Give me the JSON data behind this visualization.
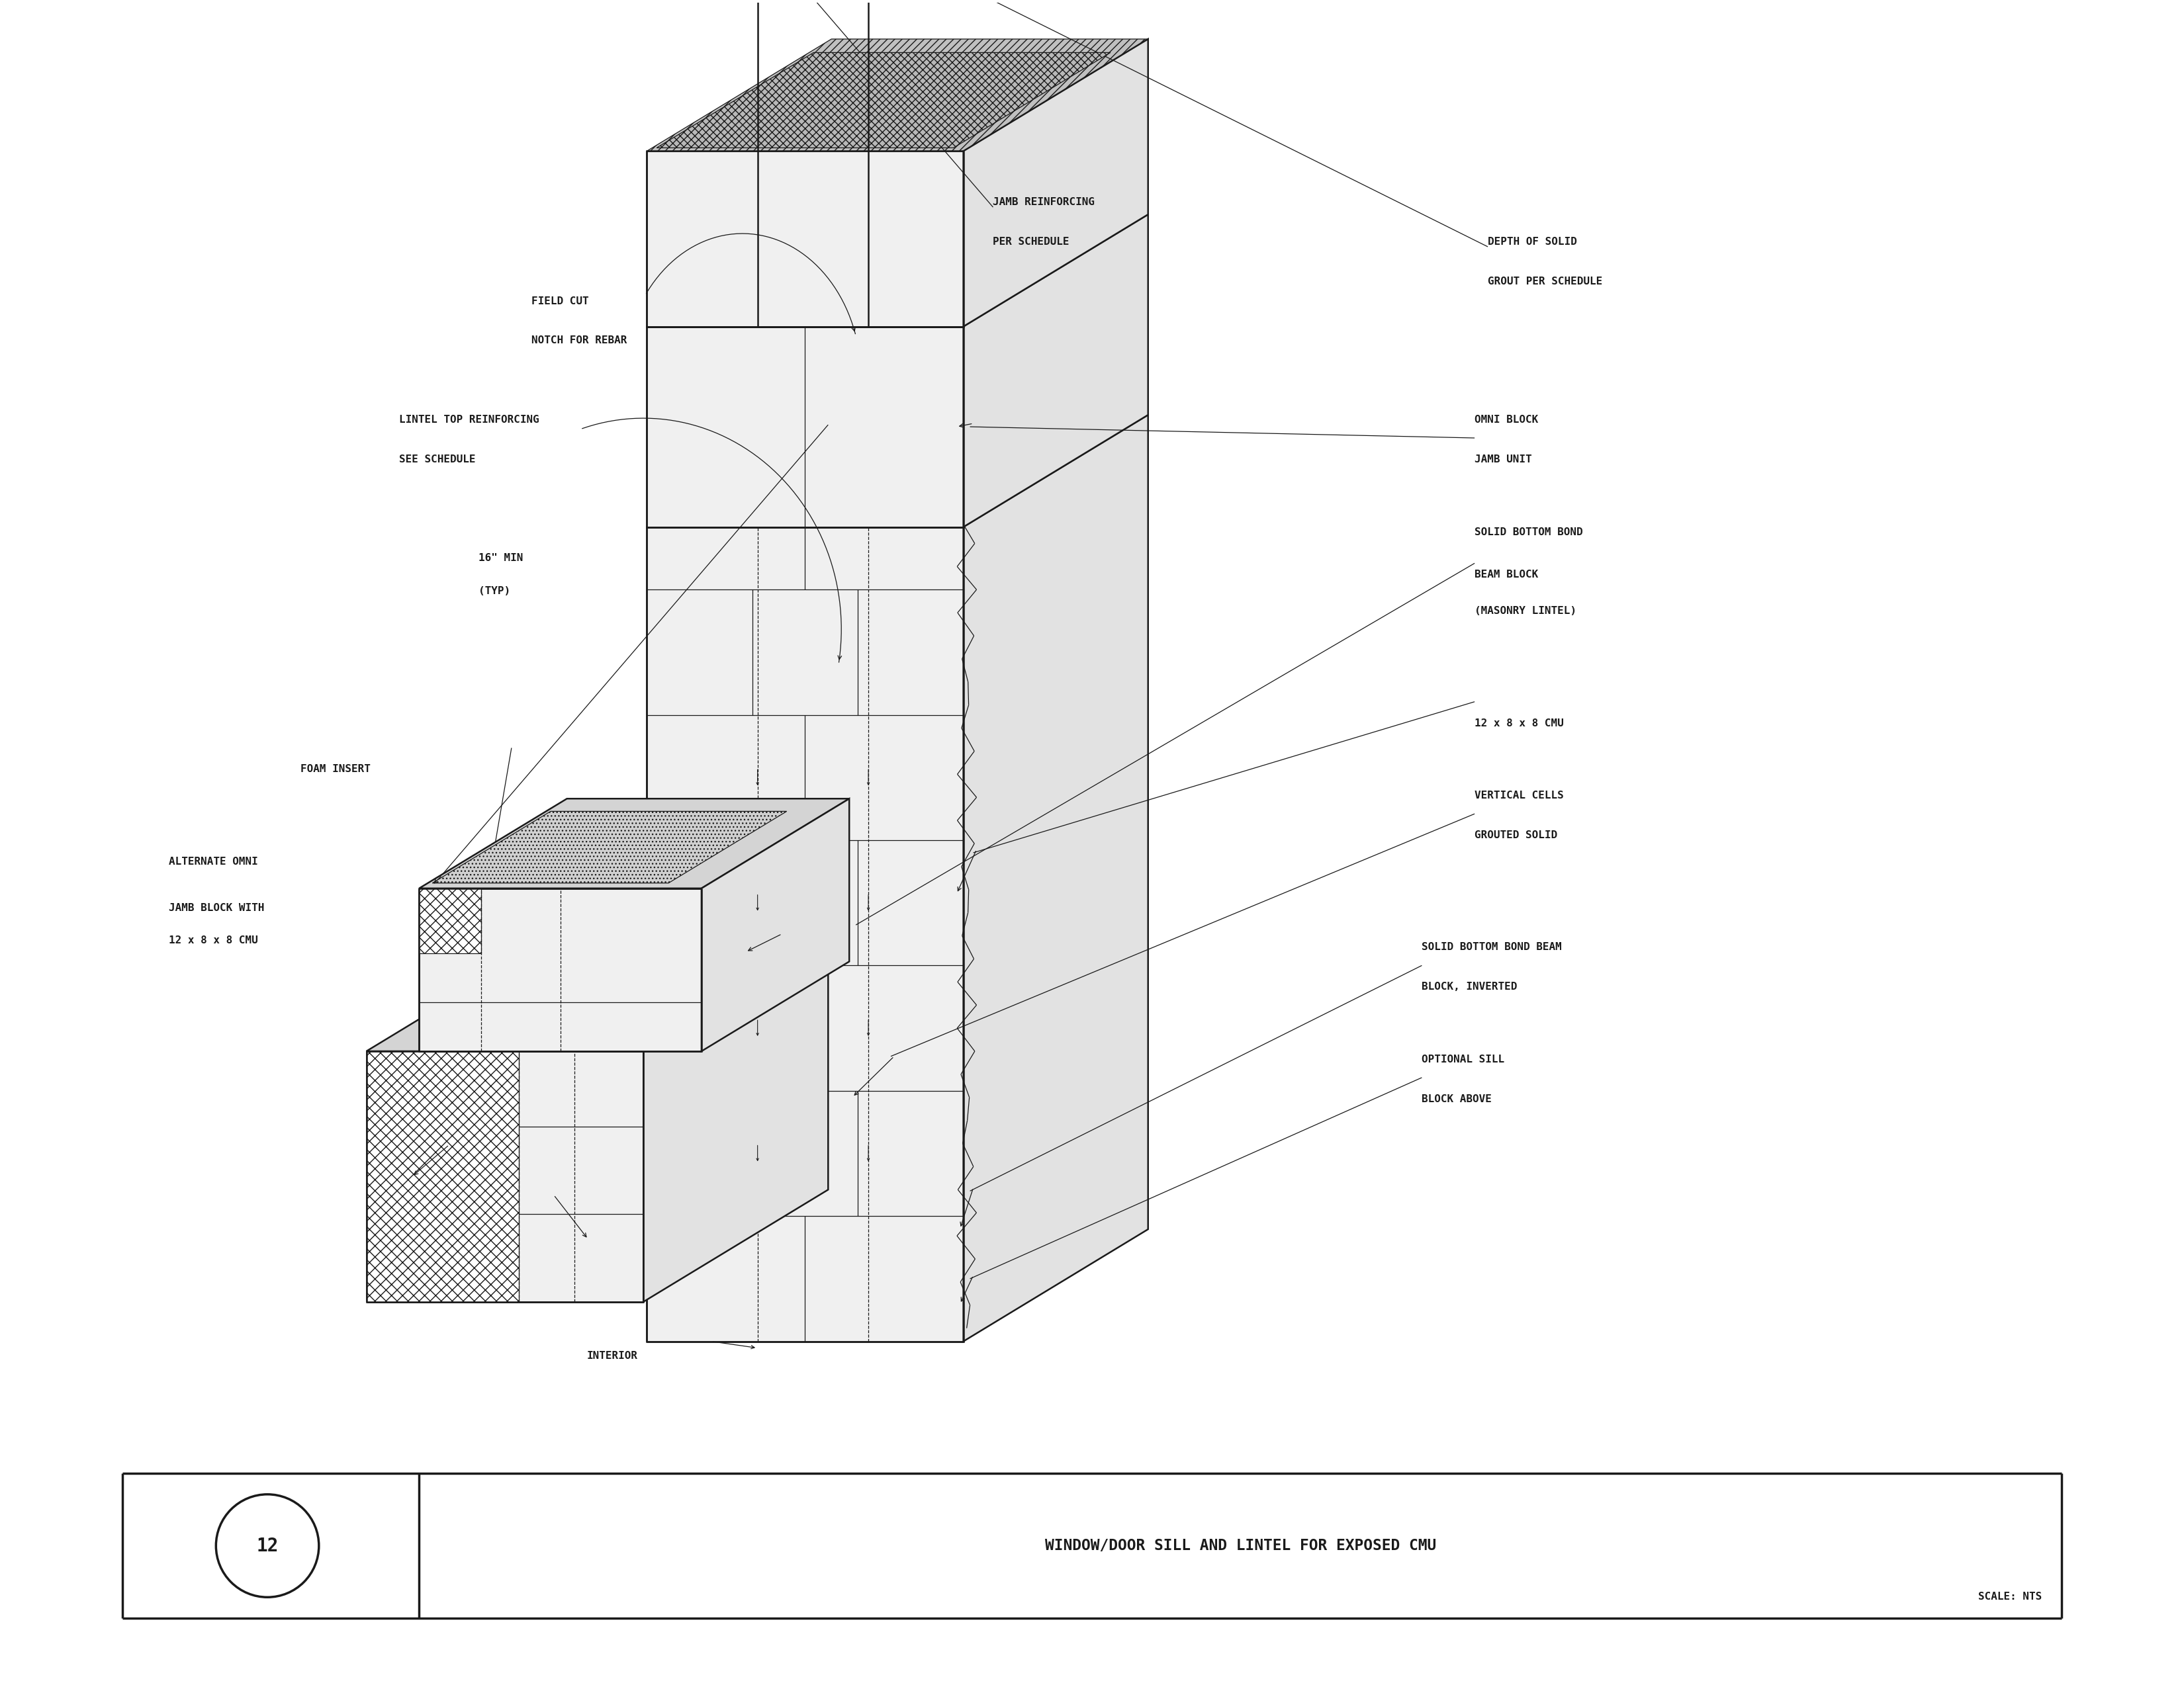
{
  "title": "WINDOW/DOOR SILL AND LINTEL FOR EXPOSED CMU",
  "scale": "SCALE: NTS",
  "detail_num": "12",
  "bg_color": "#ffffff",
  "line_color": "#1a1a1a",
  "font_color": "#1a1a1a",
  "lw_main": 1.8,
  "lw_thin": 0.9,
  "lw_thick": 2.5,
  "fs_label": 11.5,
  "fs_title": 16.5,
  "fs_detail": 18,
  "labels": {
    "jamb_reinforcing": [
      "JAMB REINFORCING",
      "PER SCHEDULE"
    ],
    "field_cut": [
      "FIELD CUT",
      "NOTCH FOR REBAR"
    ],
    "lintel_top": [
      "LINTEL TOP REINFORCING",
      "SEE SCHEDULE"
    ],
    "sixteen_min": [
      "16\" MIN",
      "(TYP)"
    ],
    "foam_insert": [
      "FOAM INSERT"
    ],
    "alternate_omni": [
      "ALTERNATE OMNI",
      "JAMB BLOCK WITH",
      "12 x 8 x 8 CMU"
    ],
    "interior": [
      "INTERIOR"
    ],
    "depth_solid": [
      "DEPTH OF SOLID",
      "GROUT PER SCHEDULE"
    ],
    "omni_block": [
      "OMNI BLOCK",
      "JAMB UNIT"
    ],
    "solid_bottom_bond": [
      "SOLID BOTTOM BOND",
      "BEAM BLOCK",
      "(MASONRY LINTEL)"
    ],
    "cmu_12x8x8": [
      "12 x 8 x 8 CMU"
    ],
    "vertical_cells": [
      "VERTICAL CELLS",
      "GROUTED SOLID"
    ],
    "solid_bottom_inverted": [
      "SOLID BOTTOM BOND BEAM",
      "BLOCK, INVERTED"
    ],
    "optional_sill": [
      "OPTIONAL SILL",
      "BLOCK ABOVE"
    ]
  }
}
